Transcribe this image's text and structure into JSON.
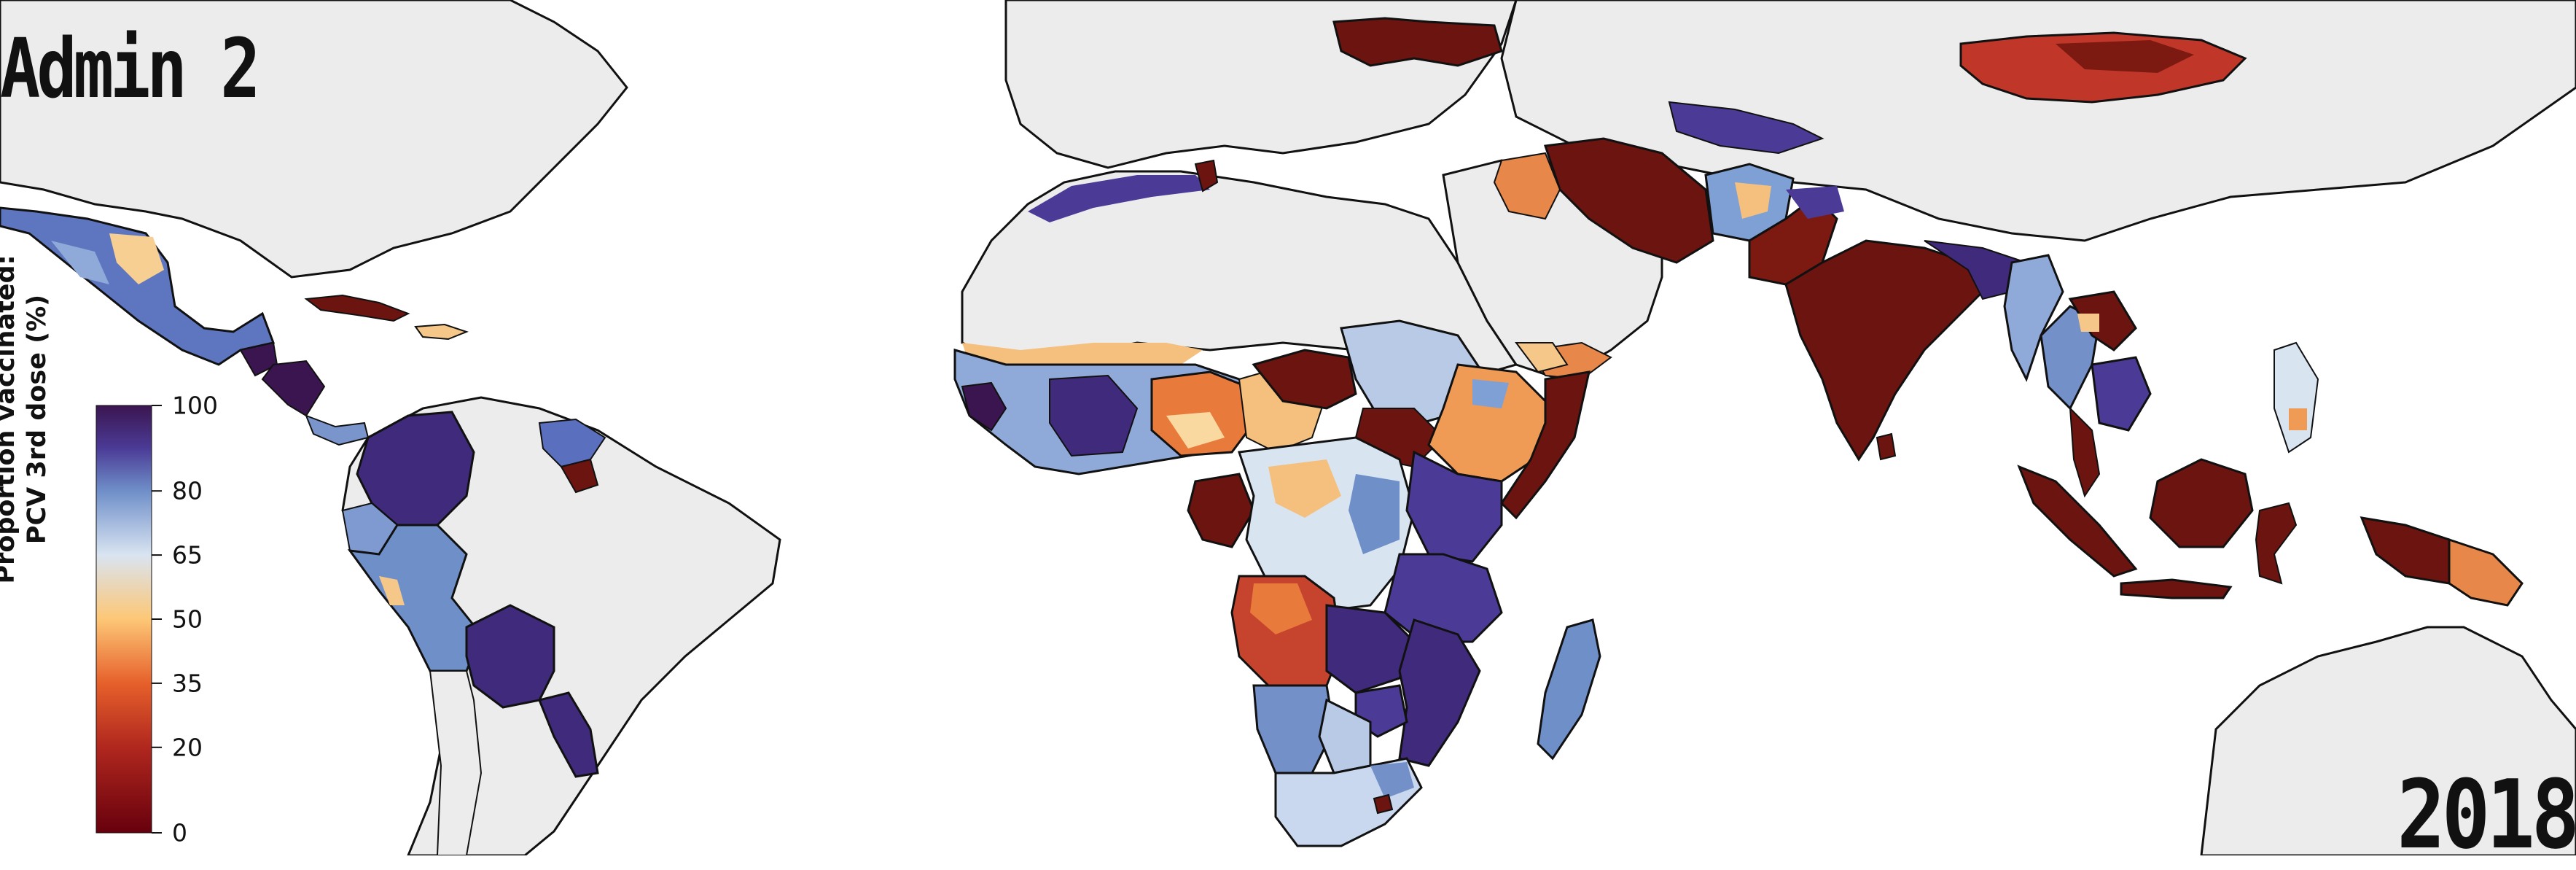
{
  "map": {
    "title": "Admin 2",
    "year": "2018",
    "colors": {
      "background": "#ffffff",
      "no_data_land": "#ececec",
      "borders": "#111111"
    }
  },
  "legend": {
    "title_line1": "Proportion vaccinated:",
    "title_line2": "PCV 3rd dose (%)",
    "range": [
      0,
      100
    ],
    "ticks": [
      {
        "value": 0,
        "label": "0"
      },
      {
        "value": 20,
        "label": "20"
      },
      {
        "value": 35,
        "label": "35"
      },
      {
        "value": 50,
        "label": "50"
      },
      {
        "value": 65,
        "label": "65"
      },
      {
        "value": 80,
        "label": "80"
      },
      {
        "value": 100,
        "label": "100"
      }
    ],
    "stops": [
      {
        "value": 0,
        "color": "#67000d"
      },
      {
        "value": 20,
        "color": "#b0271e"
      },
      {
        "value": 35,
        "color": "#e6602b"
      },
      {
        "value": 50,
        "color": "#fdc776"
      },
      {
        "value": 65,
        "color": "#d9e4f1"
      },
      {
        "value": 80,
        "color": "#6f8fc9"
      },
      {
        "value": 90,
        "color": "#4b3b96"
      },
      {
        "value": 100,
        "color": "#3b1550"
      }
    ]
  }
}
